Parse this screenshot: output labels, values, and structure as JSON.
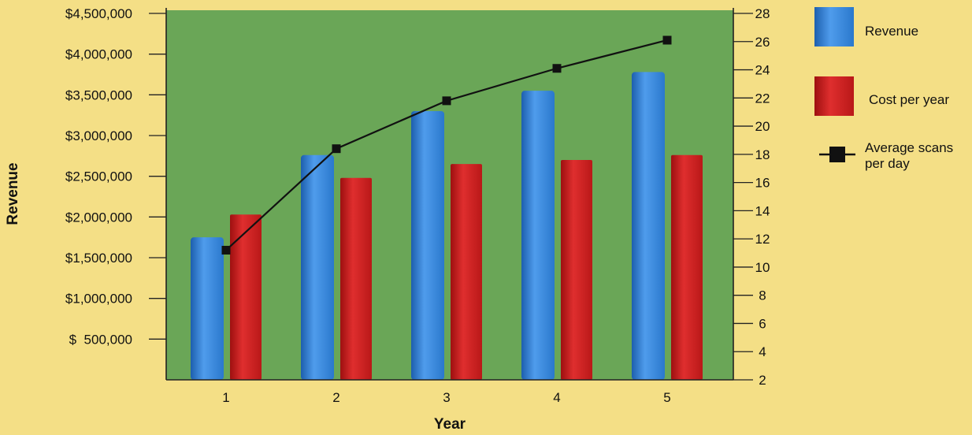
{
  "chart_data": {
    "type": "bar",
    "title": "",
    "xlabel": "Year",
    "ylabel": "Revenue",
    "y2label": "",
    "categories": [
      "1",
      "2",
      "3",
      "4",
      "5"
    ],
    "ylim": [
      0,
      4500000
    ],
    "y_ticks": [
      500000,
      1000000,
      1500000,
      2000000,
      2500000,
      3000000,
      3500000,
      4000000,
      4500000
    ],
    "y_tick_labels": [
      "$  500,000",
      "$1,000,000",
      "$1,500,000",
      "$2,000,000",
      "$2,500,000",
      "$3,000,000",
      "$3,500,000",
      "$4,000,000",
      "$4,500,000"
    ],
    "y2lim": [
      2,
      28
    ],
    "y2_ticks": [
      2,
      4,
      6,
      8,
      10,
      12,
      14,
      16,
      18,
      20,
      22,
      24,
      26,
      28
    ],
    "y2_tick_labels": [
      "2",
      "4",
      "6",
      "8",
      "10",
      "12",
      "14",
      "16",
      "18",
      "20",
      "22",
      "24",
      "26",
      "28"
    ],
    "grid": false,
    "legend_position": "right",
    "plot_background": "#6aa657",
    "series": [
      {
        "name": "Revenue",
        "type": "bar",
        "axis": "left",
        "color": "#2f7fd3",
        "values": [
          1750000,
          2760000,
          3300000,
          3550000,
          3780000
        ]
      },
      {
        "name": "Cost per year",
        "type": "bar",
        "axis": "left",
        "color": "#c41e1e",
        "values": [
          2030000,
          2480000,
          2650000,
          2700000,
          2760000
        ]
      },
      {
        "name": "Average scans per day",
        "legend_lines": [
          "Average scans",
          "per day"
        ],
        "type": "line",
        "axis": "right",
        "color": "#111111",
        "values": [
          11.2,
          18.4,
          21.8,
          24.1,
          26.1
        ]
      }
    ]
  }
}
